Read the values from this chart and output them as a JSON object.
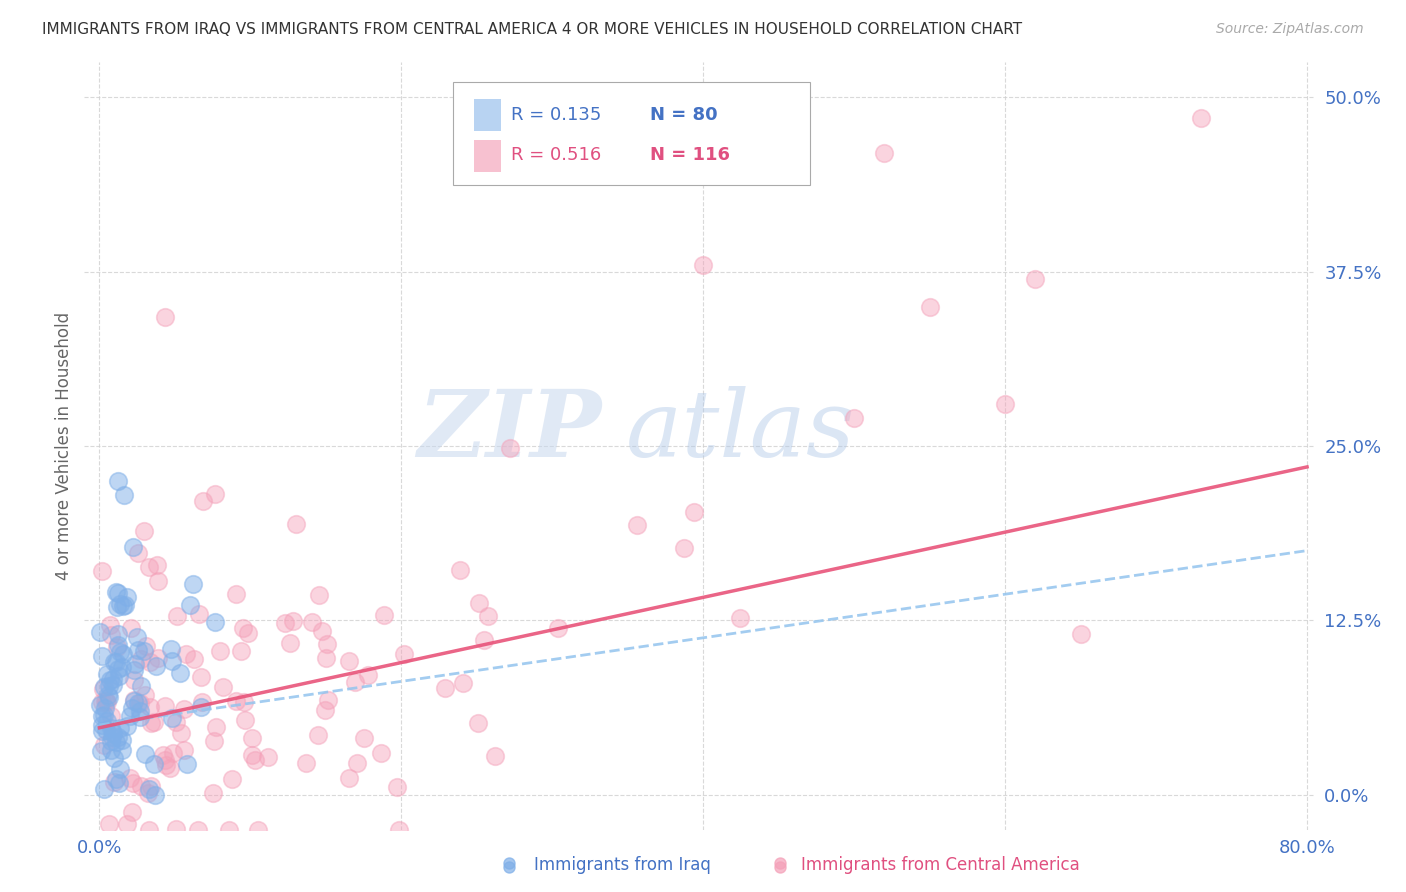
{
  "title": "IMMIGRANTS FROM IRAQ VS IMMIGRANTS FROM CENTRAL AMERICA 4 OR MORE VEHICLES IN HOUSEHOLD CORRELATION CHART",
  "source": "Source: ZipAtlas.com",
  "ylabel": "4 or more Vehicles in Household",
  "xlim": [
    0.0,
    0.8
  ],
  "ylim": [
    -0.025,
    0.525
  ],
  "yticks": [
    0.0,
    0.125,
    0.25,
    0.375,
    0.5
  ],
  "ytick_labels": [
    "0.0%",
    "12.5%",
    "25.0%",
    "37.5%",
    "50.0%"
  ],
  "xticks": [
    0.0,
    0.2,
    0.4,
    0.6,
    0.8
  ],
  "xtick_labels": [
    "0.0%",
    "",
    "",
    "",
    "80.0%"
  ],
  "iraq_R": 0.135,
  "iraq_N": 80,
  "central_R": 0.516,
  "central_N": 116,
  "blue_color": "#7fafe8",
  "pink_color": "#f4a0b8",
  "blue_line_color": "#93c4ee",
  "pink_line_color": "#e8547a",
  "legend_iraq": "Immigrants from Iraq",
  "legend_central": "Immigrants from Central America",
  "watermark_zip": "ZIP",
  "watermark_atlas": "atlas",
  "background_color": "#ffffff",
  "grid_color": "#d0d0d0",
  "title_color": "#333333",
  "tick_label_color": "#4472c4",
  "iraq_trend_y_start": 0.05,
  "iraq_trend_y_end": 0.175,
  "central_trend_y_start": 0.048,
  "central_trend_y_end": 0.235
}
